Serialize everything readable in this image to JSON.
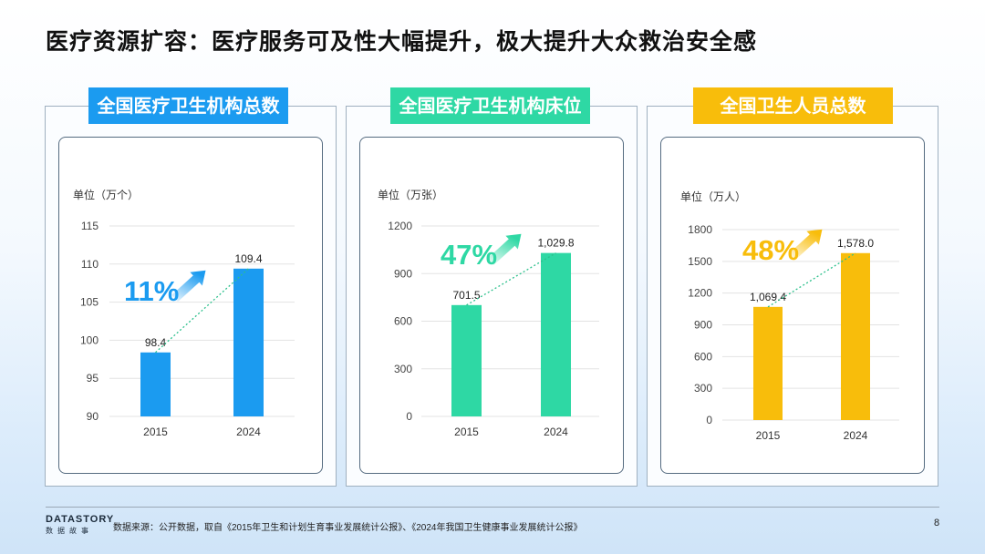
{
  "title": "医疗资源扩容：医疗服务可及性大幅提升，极大提升大众救治安全感",
  "colors": {
    "blue": "#1b9bf0",
    "teal": "#2ed8a4",
    "gold": "#f8bd0b"
  },
  "chart_data": [
    {
      "type": "bar",
      "title": "全国医疗卫生机构总数",
      "unit": "单位（万个）",
      "categories": [
        "2015",
        "2024"
      ],
      "values": [
        98.4,
        109.4
      ],
      "value_labels": [
        "98.4",
        "109.4"
      ],
      "ylim": [
        90,
        115
      ],
      "yticks": [
        90,
        95,
        100,
        105,
        110,
        115
      ],
      "growth": "11%",
      "color": "#1b9bf0"
    },
    {
      "type": "bar",
      "title": "全国医疗卫生机构床位",
      "unit": "单位（万张）",
      "categories": [
        "2015",
        "2024"
      ],
      "values": [
        701.5,
        1029.8
      ],
      "value_labels": [
        "701.5",
        "1,029.8"
      ],
      "ylim": [
        0,
        1200
      ],
      "yticks": [
        0,
        300,
        600,
        900,
        1200
      ],
      "growth": "47%",
      "color": "#2ed8a4"
    },
    {
      "type": "bar",
      "title": "全国卫生人员总数",
      "unit": "单位（万人）",
      "categories": [
        "2015",
        "2024"
      ],
      "values": [
        1069.4,
        1578.0
      ],
      "value_labels": [
        "1,069.4",
        "1,578.0"
      ],
      "ylim": [
        0,
        1800
      ],
      "yticks": [
        0,
        300,
        600,
        900,
        1200,
        1500,
        1800
      ],
      "growth": "48%",
      "color": "#f8bd0b"
    }
  ],
  "footer": {
    "brand": "DATASTORY",
    "brand_sub": "数据故事",
    "source": "数据来源：公开数据，取自《2015年卫生和计划生育事业发展统计公报》、《2024年我国卫生健康事业发展统计公报》",
    "page": "8"
  }
}
